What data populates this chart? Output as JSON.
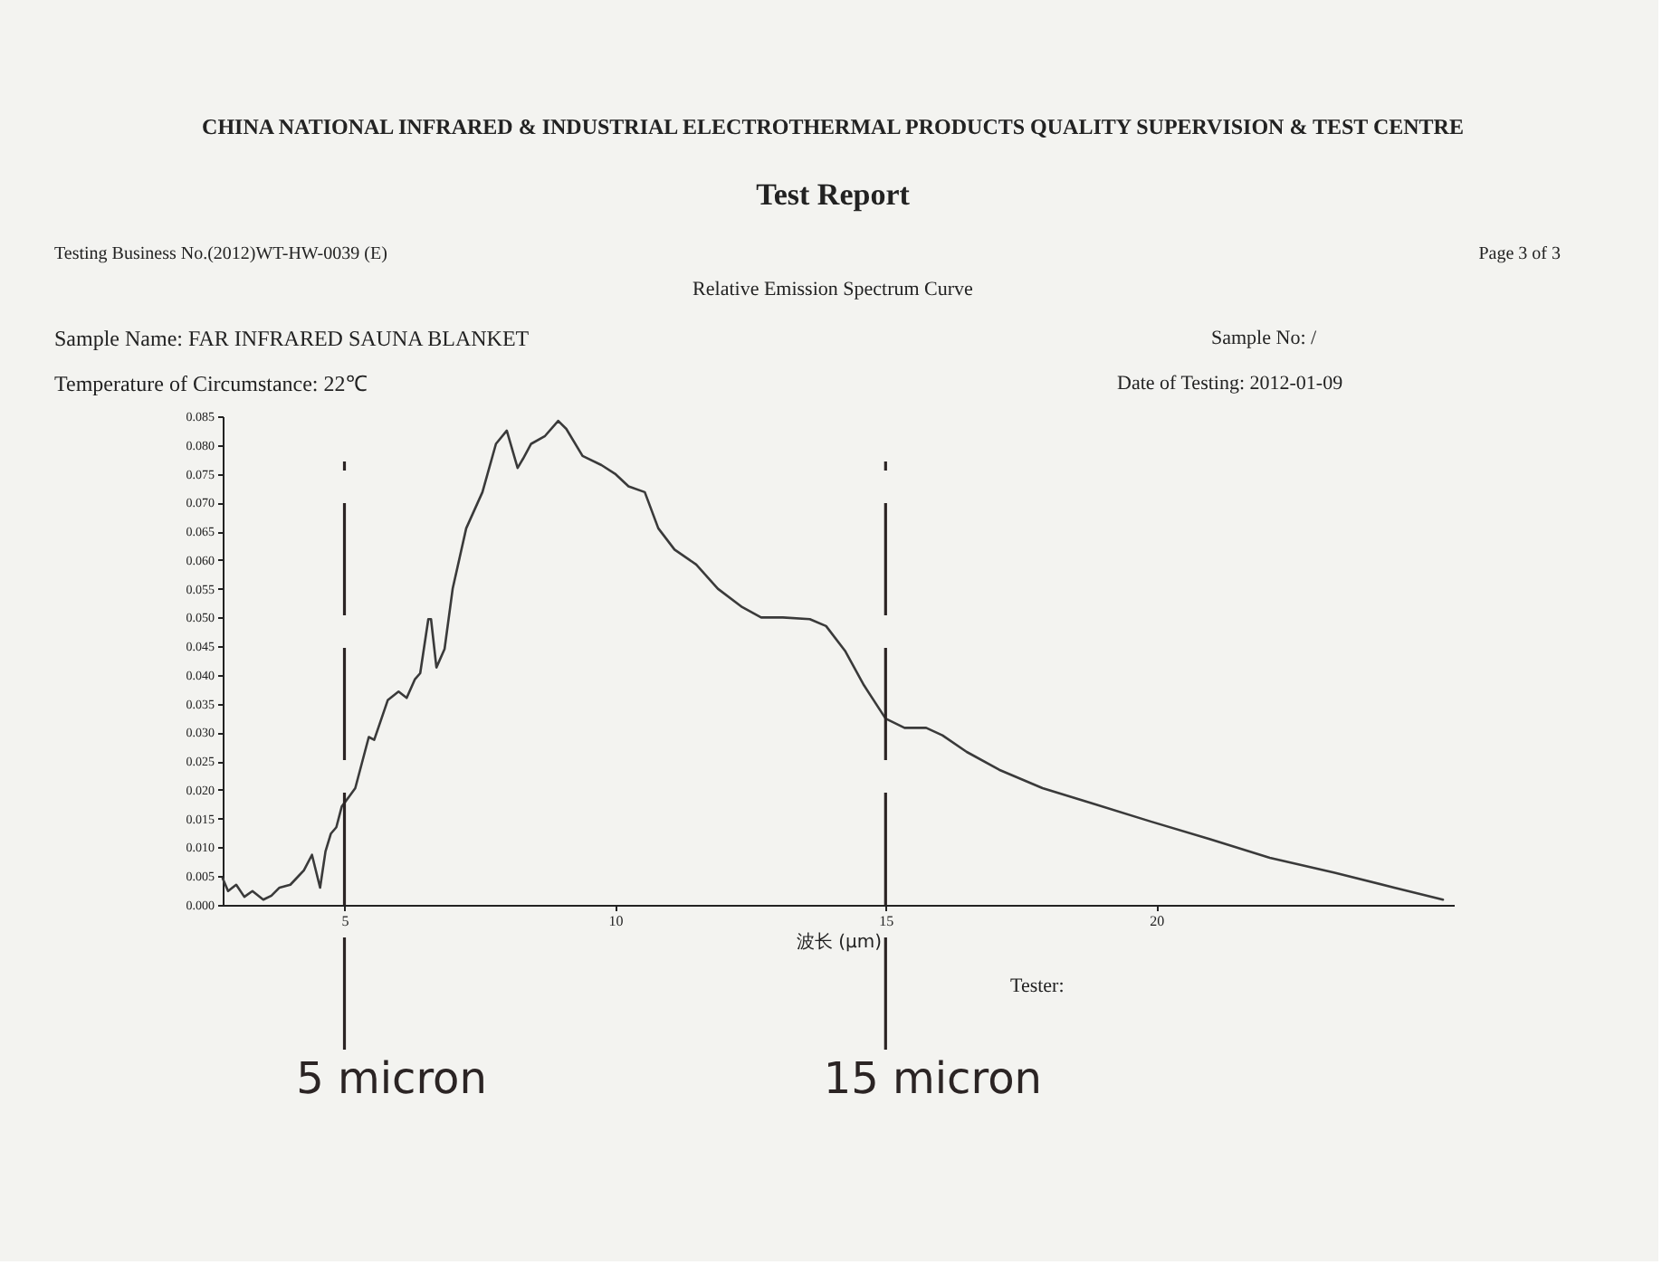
{
  "chart_data": {
    "type": "line",
    "title": "Test Report",
    "subtitle": "Relative Emission Spectrum Curve",
    "xlabel": "波长 (μm)",
    "annotations": [
      "CHINA NATIONAL INFRARED & INDUSTRIAL ELECTROTHERMAL PRODUCTS QUALITY SUPERVISION & TEST CENTRE",
      "Testing Business No.(2012)WT-HW-0039 (E)",
      "Page 3 of 3",
      "Sample Name: FAR INFRARED SAUNA BLANKET",
      "Sample No: /",
      "Temperature of Circumstance: 22℃",
      "Date of Testing: 2012-01-09",
      "Tester:"
    ],
    "series": [
      {
        "color": "#3a3a3a",
        "x": [
          2.75,
          2.85,
          3.0,
          3.15,
          3.3,
          3.5,
          3.65,
          3.8,
          4.0,
          4.15,
          4.25,
          4.4,
          4.55,
          4.65,
          4.75,
          4.85,
          4.95,
          5.1,
          5.2,
          5.45,
          5.55,
          5.8,
          6.0,
          6.15,
          6.3,
          6.4,
          6.55,
          6.6,
          6.7,
          6.85,
          7.0,
          7.25,
          7.55,
          7.8,
          8.0,
          8.2,
          8.3,
          8.45,
          8.7,
          8.95,
          9.1,
          9.4,
          9.75,
          10.0,
          10.25,
          10.55,
          10.8,
          11.1,
          11.5,
          11.9,
          12.35,
          12.7,
          13.1,
          13.6,
          13.9,
          14.25,
          14.6,
          15.0,
          15.35,
          15.75,
          16.05,
          16.5,
          17.1,
          17.9,
          18.8,
          19.9,
          21.0,
          22.1,
          23.3,
          24.4,
          25.3
        ],
        "values": [
          0.0046,
          0.0024,
          0.0035,
          0.0014,
          0.0024,
          0.0009,
          0.0016,
          0.003,
          0.0035,
          0.005,
          0.006,
          0.0087,
          0.003,
          0.0093,
          0.0124,
          0.0135,
          0.0171,
          0.019,
          0.0203,
          0.0292,
          0.0287,
          0.0356,
          0.0371,
          0.036,
          0.0392,
          0.0403,
          0.0497,
          0.0497,
          0.0413,
          0.0445,
          0.055,
          0.0655,
          0.0718,
          0.0802,
          0.0825,
          0.076,
          0.0776,
          0.0802,
          0.0815,
          0.0842,
          0.0828,
          0.0781,
          0.0765,
          0.075,
          0.0728,
          0.0718,
          0.0655,
          0.0618,
          0.0592,
          0.055,
          0.0518,
          0.05,
          0.05,
          0.0497,
          0.0485,
          0.0442,
          0.0382,
          0.0324,
          0.0308,
          0.0308,
          0.0295,
          0.0266,
          0.0235,
          0.0203,
          0.0177,
          0.0145,
          0.0114,
          0.0082,
          0.0056,
          0.003,
          0.0009
        ]
      }
    ],
    "xlim": [
      2.75,
      25.5
    ],
    "xticks": [
      5,
      10,
      15,
      20
    ],
    "ylim": [
      0,
      0.085
    ],
    "yticks": [
      {
        "value": 0,
        "label": "0.000"
      },
      0.005,
      {
        "value": 0.01,
        "label": "0.010"
      },
      0.015,
      {
        "value": 0.02,
        "label": "0.020"
      },
      0.025,
      {
        "value": 0.03,
        "label": "0.030"
      },
      0.035,
      {
        "value": 0.04,
        "label": "0.040"
      },
      0.045,
      {
        "value": 0.05,
        "label": "0.050"
      },
      0.055,
      {
        "value": 0.06,
        "label": "0.060"
      },
      0.065,
      {
        "value": 0.07,
        "label": "0.070"
      },
      0.075,
      {
        "value": 0.08,
        "label": "0.080"
      },
      0.085
    ],
    "ref_lines": [
      {
        "axis": "x",
        "value": 5,
        "label": "5 micron",
        "color": "#2b2424",
        "line_style": "dashed"
      },
      {
        "axis": "x",
        "value": 15,
        "label": "15 micron",
        "color": "#2b2424",
        "line_style": "dashed"
      }
    ]
  }
}
